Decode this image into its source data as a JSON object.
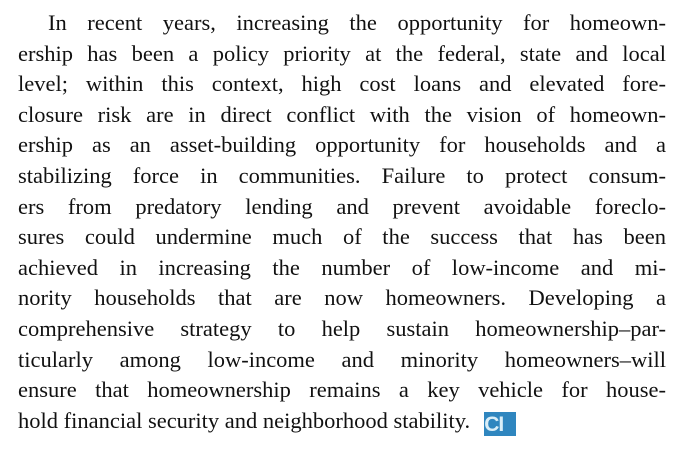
{
  "paragraph": {
    "lines": [
      "In recent years, increasing the opportunity for homeown-",
      "ership has been a policy priority at the federal, state and local",
      "level; within this context, high cost loans and elevated fore-",
      "closure risk are in direct conflict with the vision of homeown-",
      "ership as an asset-building opportunity for households and a",
      "stabilizing force in communities. Failure to protect consum-",
      "ers from predatory lending and prevent avoidable foreclo-",
      "sures could undermine much of the success that has been",
      "achieved in increasing the number of low-income and mi-",
      "nority households that are now homeowners. Developing a",
      "comprehensive strategy to help sustain homeownership–par-",
      "ticularly among low-income and minority homeowners–will",
      "ensure that homeownership remains a key vehicle for house-",
      "hold financial security and neighborhood stability."
    ]
  },
  "logo": "CI"
}
